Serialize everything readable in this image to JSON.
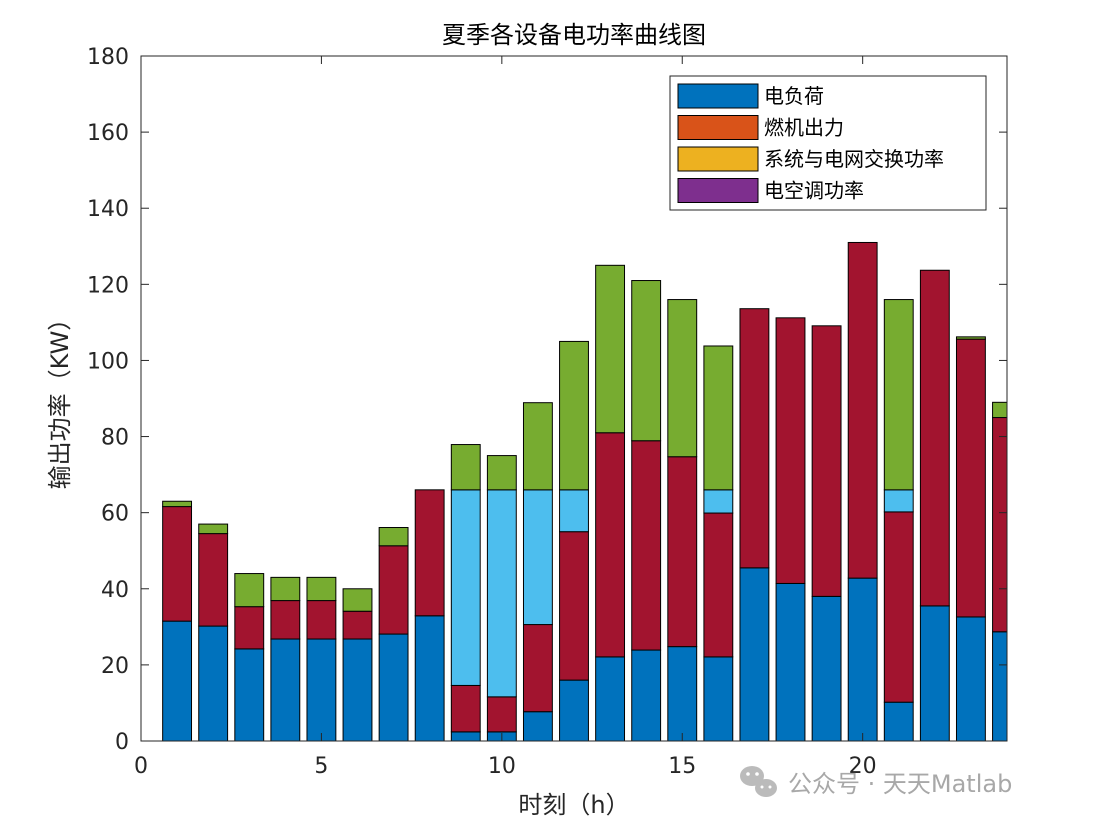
{
  "chart_data": {
    "type": "bar",
    "stacked": true,
    "title": "夏季各设备电功率曲线图",
    "xlabel": "时刻（h）",
    "ylabel": "输出功率（KW）",
    "xlim": [
      0,
      24
    ],
    "ylim": [
      0,
      180
    ],
    "xticks": [
      0,
      5,
      10,
      15,
      20
    ],
    "yticks": [
      0,
      20,
      40,
      60,
      80,
      100,
      120,
      140,
      160,
      180
    ],
    "grid": false,
    "legend_position": "top-right",
    "legend": [
      {
        "label": "电负荷",
        "color": "#0072BD"
      },
      {
        "label": "燃机出力",
        "color": "#D95319"
      },
      {
        "label": "系统与电网交换功率",
        "color": "#EDB120"
      },
      {
        "label": "电空调功率",
        "color": "#7E2F8E"
      }
    ],
    "x": [
      1,
      2,
      3,
      4,
      5,
      6,
      7,
      8,
      9,
      10,
      11,
      12,
      13,
      14,
      15,
      16,
      17,
      18,
      19,
      20,
      21,
      22,
      23,
      24
    ],
    "series": [
      {
        "color": "#0072BD",
        "values": [
          31.5,
          30.2,
          24.2,
          26.8,
          26.8,
          26.8,
          28.1,
          32.9,
          2.4,
          2.4,
          7.7,
          16.0,
          22.1,
          23.9,
          24.8,
          22.1,
          45.5,
          41.4,
          38.0,
          42.8,
          10.2,
          35.5,
          32.6,
          28.7
        ]
      },
      {
        "color": "#A2142F",
        "values": [
          30.1,
          24.3,
          11.1,
          10.1,
          10.1,
          7.3,
          23.2,
          33.1,
          12.2,
          9.2,
          22.9,
          39.0,
          58.9,
          55.0,
          49.9,
          37.8,
          68.1,
          69.8,
          71.1,
          88.2,
          50.0,
          88.2,
          73.0,
          56.3
        ]
      },
      {
        "color": "#4DBEEE",
        "values": [
          0,
          0,
          0,
          0,
          0,
          0,
          0,
          0,
          51.4,
          54.4,
          35.4,
          11.0,
          0,
          0,
          0,
          6.1,
          0,
          0,
          0,
          0,
          5.8,
          0,
          0,
          0
        ]
      },
      {
        "color": "#77AC30",
        "values": [
          1.4,
          2.5,
          8.7,
          6.1,
          6.1,
          5.9,
          4.8,
          0,
          11.9,
          9.0,
          22.9,
          39.0,
          44.0,
          42.1,
          41.3,
          37.8,
          0,
          0,
          0,
          0,
          50.0,
          0,
          0.6,
          4.0
        ]
      }
    ]
  },
  "watermark": {
    "text": "公众号 · 天天Matlab",
    "icon": "wechat-icon"
  }
}
